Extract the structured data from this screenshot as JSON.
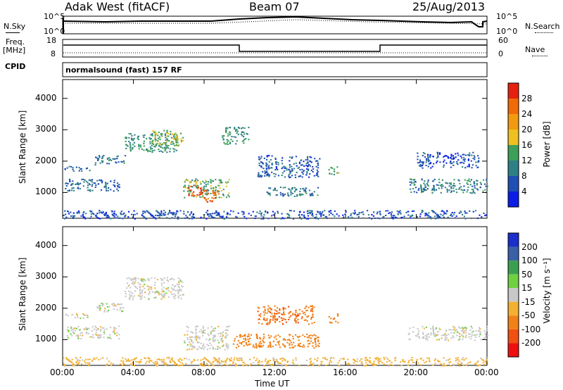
{
  "header": {
    "station": "Adak West (fitACF)",
    "beam": "Beam 07",
    "date": "25/Aug/2013"
  },
  "noise_panel": {
    "left_label": "N.Sky",
    "right_label": "N.Search",
    "left_ticks": [
      "10^5",
      "10^0"
    ],
    "right_ticks": [
      "10^5",
      "10^0"
    ]
  },
  "freq_panel": {
    "left_label_1": "Freq.",
    "left_label_2": "[MHz]",
    "right_label": "Nave",
    "left_ticks": [
      "18",
      "8"
    ],
    "right_ticks": [
      "60",
      "0"
    ]
  },
  "cpid": {
    "label": "CPID",
    "value": "normalsound (fast) 157 RF"
  },
  "axes": {
    "ylabel": "Slant Range [km]",
    "xlabel": "Time UT",
    "y_ticks": [
      "1000",
      "2000",
      "3000",
      "4000"
    ],
    "x_ticks": [
      "00:00",
      "04:00",
      "08:00",
      "12:00",
      "16:00",
      "20:00",
      "00:00"
    ]
  },
  "colorbars": {
    "power": {
      "label": "Power [dB]",
      "ticks": [
        "4",
        "8",
        "12",
        "16",
        "20",
        "24",
        "28"
      ],
      "colors": [
        "#0a1ee6",
        "#1f4fb4",
        "#2f7f86",
        "#3c9f5a",
        "#f0c020",
        "#f29a10",
        "#f06a08",
        "#e62010"
      ]
    },
    "velocity": {
      "label": "Velocity [m s⁻¹]",
      "ticks": [
        "200",
        "100",
        "50",
        "15",
        "-15",
        "-50",
        "-100",
        "-200"
      ],
      "colors": [
        "#1a2fcc",
        "#3a60a8",
        "#3c9f50",
        "#6fd040",
        "#c8c8c8",
        "#f4b030",
        "#f08018",
        "#f05010",
        "#ee1010"
      ]
    }
  },
  "chart_data": [
    {
      "type": "heatmap",
      "title": "Power",
      "xlabel": "Time UT",
      "ylabel": "Slant Range [km]",
      "xlim": [
        0,
        24
      ],
      "ylim": [
        180,
        4600
      ],
      "zlim": [
        0,
        30
      ],
      "blobs": [
        {
          "t0": 0.1,
          "t1": 3.2,
          "r0": 1050,
          "r1": 1450,
          "v": 8
        },
        {
          "t0": 0.1,
          "t1": 1.5,
          "r0": 1700,
          "r1": 1850,
          "v": 8
        },
        {
          "t0": 1.8,
          "t1": 3.5,
          "r0": 1900,
          "r1": 2200,
          "v": 9
        },
        {
          "t0": 3.5,
          "t1": 6.5,
          "r0": 2300,
          "r1": 2900,
          "v": 12
        },
        {
          "t0": 5.0,
          "t1": 6.8,
          "r0": 2500,
          "r1": 3000,
          "v": 16
        },
        {
          "t0": 6.8,
          "t1": 9.4,
          "r0": 850,
          "r1": 1450,
          "v": 14
        },
        {
          "t0": 7.0,
          "t1": 7.8,
          "r0": 900,
          "r1": 1250,
          "v": 28
        },
        {
          "t0": 7.8,
          "t1": 8.8,
          "r0": 700,
          "r1": 1100,
          "v": 26
        },
        {
          "t0": 9.0,
          "t1": 10.5,
          "r0": 2550,
          "r1": 3100,
          "v": 12
        },
        {
          "t0": 11.0,
          "t1": 14.5,
          "r0": 1500,
          "r1": 2200,
          "v": 7
        },
        {
          "t0": 11.5,
          "t1": 14.5,
          "r0": 900,
          "r1": 1200,
          "v": 9
        },
        {
          "t0": 15.0,
          "t1": 15.6,
          "r0": 1550,
          "r1": 1850,
          "v": 14
        },
        {
          "t0": 19.5,
          "t1": 24.0,
          "r0": 1000,
          "r1": 1450,
          "v": 10
        },
        {
          "t0": 20.0,
          "t1": 23.5,
          "r0": 1800,
          "r1": 2300,
          "v": 5
        },
        {
          "t0": 0.0,
          "t1": 24.0,
          "r0": 180,
          "r1": 450,
          "v": 6
        }
      ]
    },
    {
      "type": "heatmap",
      "title": "Velocity",
      "xlabel": "Time UT",
      "ylabel": "Slant Range [km]",
      "xlim": [
        0,
        24
      ],
      "ylim": [
        180,
        4600
      ],
      "zlim": [
        -200,
        200
      ],
      "blobs": [
        {
          "t0": 0.1,
          "t1": 3.2,
          "r0": 1050,
          "r1": 1450,
          "v": 0
        },
        {
          "t0": 0.1,
          "t1": 1.5,
          "r0": 1700,
          "r1": 1850,
          "v": 0
        },
        {
          "t0": 1.8,
          "t1": 3.5,
          "r0": 1900,
          "r1": 2200,
          "v": 0
        },
        {
          "t0": 3.5,
          "t1": 6.8,
          "r0": 2300,
          "r1": 3000,
          "v": 0
        },
        {
          "t0": 6.8,
          "t1": 9.4,
          "r0": 700,
          "r1": 1450,
          "v": 0
        },
        {
          "t0": 9.5,
          "t1": 14.5,
          "r0": 750,
          "r1": 1200,
          "v": -70
        },
        {
          "t0": 11.0,
          "t1": 14.2,
          "r0": 1500,
          "r1": 2100,
          "v": -90
        },
        {
          "t0": 15.0,
          "t1": 15.6,
          "r0": 1550,
          "r1": 1850,
          "v": -80
        },
        {
          "t0": 19.5,
          "t1": 24.0,
          "r0": 1000,
          "r1": 1450,
          "v": 0
        },
        {
          "t0": 0.0,
          "t1": 24.0,
          "r0": 180,
          "r1": 450,
          "v": -30
        }
      ]
    }
  ]
}
